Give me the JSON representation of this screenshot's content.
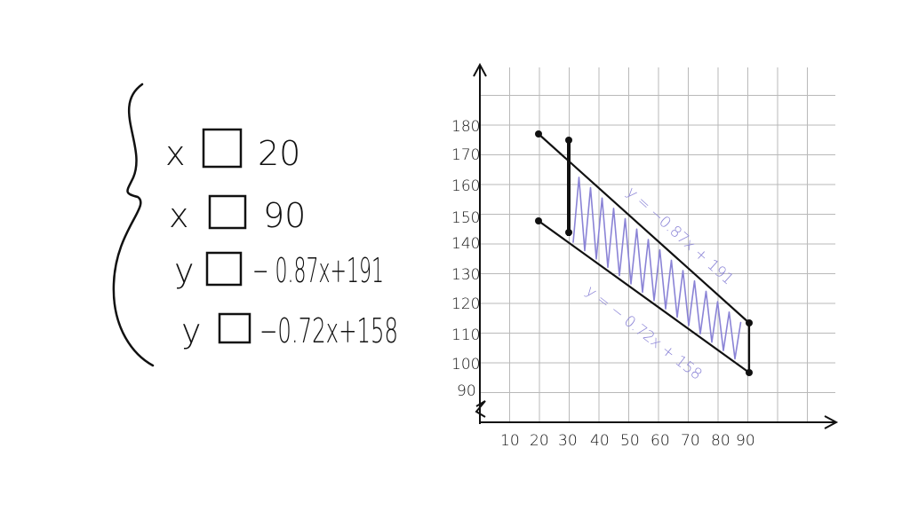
{
  "system": {
    "inequalities": [
      {
        "var": "x",
        "rhs": "20"
      },
      {
        "var": "x",
        "rhs": "90"
      },
      {
        "var": "y",
        "rhs": "− 0.87x+191"
      },
      {
        "var": "y",
        "rhs": "−0.72x+158"
      }
    ]
  },
  "graph": {
    "x_ticks": [
      "10",
      "20",
      "30",
      "40",
      "50",
      "60",
      "70",
      "80",
      "90"
    ],
    "y_ticks": [
      "180",
      "170",
      "160",
      "150",
      "140",
      "130",
      "120",
      "110",
      "100",
      "90"
    ],
    "line_labels": [
      "y = −0.87x + 191",
      "y = − 0.72x + 158"
    ],
    "shade_color": "#8a83d6",
    "ink_color": "#111111"
  }
}
